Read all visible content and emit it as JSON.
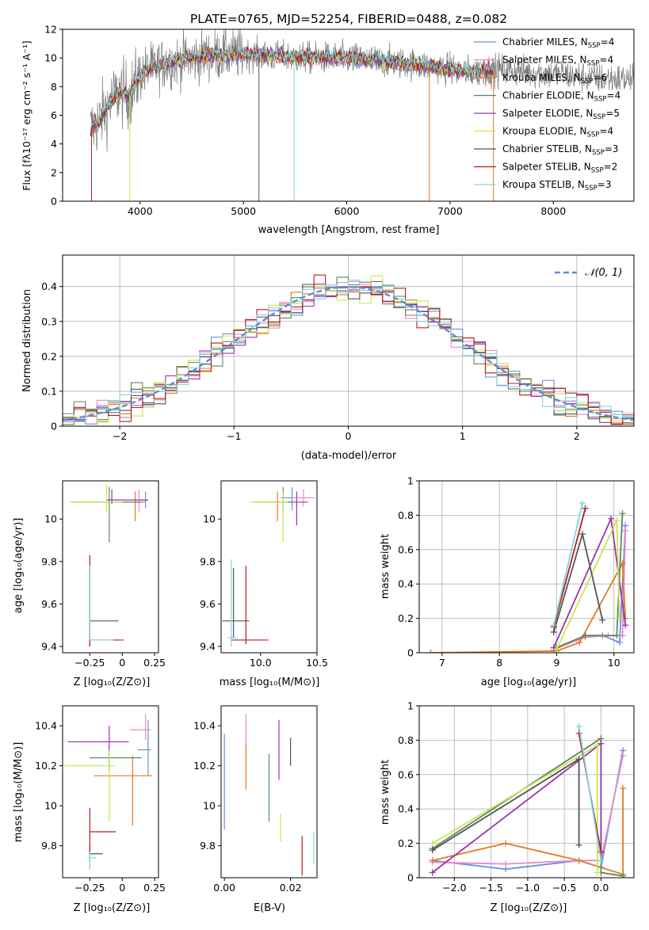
{
  "title": "PLATE=0765, MJD=52254, FIBERID=0488, z=0.082",
  "models": [
    {
      "name": "Chabrier MILES",
      "nssp": "4",
      "color": "#6f8fde"
    },
    {
      "name": "Salpeter MILES",
      "nssp": "4",
      "color": "#e88ac8"
    },
    {
      "name": "Kroupa MILES",
      "nssp": "6",
      "color": "#e07b24"
    },
    {
      "name": "Chabrier ELODIE",
      "nssp": "4",
      "color": "#5a8a5a"
    },
    {
      "name": "Salpeter ELODIE",
      "nssp": "5",
      "color": "#9a32b0"
    },
    {
      "name": "Kroupa ELODIE",
      "nssp": "4",
      "color": "#c8e650"
    },
    {
      "name": "Chabrier STELIB",
      "nssp": "3",
      "color": "#555555"
    },
    {
      "name": "Salpeter STELIB",
      "nssp": "2",
      "color": "#b81c1c"
    },
    {
      "name": "Kroupa STELIB",
      "nssp": "3",
      "color": "#7fd6e0"
    }
  ],
  "chart_data": [
    {
      "id": "spectrum",
      "type": "line",
      "xlabel": "wavelength [Angstrom, rest frame]",
      "ylabel": "Flux [fλ10⁻¹⁷ erg cm⁻² s⁻¹ A⁻¹]",
      "xlim": [
        3250,
        8780
      ],
      "ylim": [
        0,
        12
      ],
      "xticks": [
        4000,
        5000,
        6000,
        7000,
        8000
      ],
      "yticks": [
        0,
        2,
        4,
        6,
        8,
        10,
        12
      ],
      "x": [
        3520,
        3600,
        3700,
        3800,
        3900,
        4000,
        4100,
        4300,
        4500,
        4700,
        5000,
        5300,
        5600,
        6000,
        6300,
        6600,
        6900,
        7200,
        7500,
        7800,
        8100,
        8400,
        8780
      ],
      "y": [
        5.0,
        5.6,
        6.8,
        7.6,
        7.4,
        8.8,
        9.3,
        9.7,
        10.0,
        10.2,
        10.3,
        10.1,
        10.0,
        10.0,
        9.8,
        9.6,
        9.3,
        9.0,
        9.2,
        9.0,
        8.8,
        8.6,
        8.5
      ]
    },
    {
      "id": "residuals",
      "type": "line",
      "xlabel": "(data-model)/error",
      "ylabel": "Normed distribution",
      "legend": "𝒩(0, 1)",
      "xlim": [
        -2.5,
        2.5
      ],
      "ylim": [
        0,
        0.49
      ],
      "xticks": [
        -2,
        -1,
        0,
        1,
        2
      ],
      "yticks": [
        0.0,
        0.1,
        0.2,
        0.3,
        0.4
      ],
      "bin_width": 0.1,
      "bin_start": -2.5,
      "grid": true
    },
    {
      "id": "age_vs_z",
      "type": "scatter",
      "xlabel": "Z [log₁₀(Z/Z⊙)]",
      "ylabel": "age  [log₁₀(age/yr)]",
      "xlim": [
        -0.46,
        0.28
      ],
      "ylim": [
        9.37,
        10.18
      ],
      "xticks": [
        -0.25,
        0.0,
        0.25
      ],
      "yticks": [
        9.4,
        9.6,
        9.8,
        10.0
      ],
      "points": [
        {
          "x": 0.18,
          "y": 10.09,
          "xerr": [
            0.08,
            0.02
          ],
          "yerr": [
            0.04,
            0.04
          ]
        },
        {
          "x": 0.13,
          "y": 10.09,
          "xerr": [
            0.05,
            0.07
          ],
          "yerr": [
            0.06,
            0.05
          ]
        },
        {
          "x": 0.1,
          "y": 10.08,
          "xerr": [
            0.36,
            0.08
          ],
          "yerr": [
            0.09,
            0.05
          ]
        },
        {
          "x": -0.1,
          "y": 10.08,
          "xerr": [
            0.3,
            0.25
          ],
          "yerr": [
            0.19,
            0.07
          ]
        },
        {
          "x": -0.08,
          "y": 10.09,
          "xerr": [
            0.04,
            0.28
          ],
          "yerr": [
            0.02,
            0.05
          ]
        },
        {
          "x": -0.12,
          "y": 10.08,
          "xerr": [
            0.28,
            0.12
          ],
          "yerr": [
            0.05,
            0.08
          ]
        },
        {
          "x": -0.25,
          "y": 9.52,
          "xerr": [
            0.0,
            0.22
          ],
          "yerr": [
            0.12,
            0.25
          ]
        },
        {
          "x": -0.25,
          "y": 9.43,
          "xerr": [
            0.0,
            0.26
          ],
          "yerr": [
            0.03,
            0.4
          ]
        },
        {
          "x": -0.25,
          "y": 9.43,
          "xerr": [
            0.0,
            0.18
          ],
          "yerr": [
            0.0,
            0.35
          ]
        }
      ]
    },
    {
      "id": "age_vs_mass",
      "type": "scatter",
      "xlabel": "mass [log₁₀(M/M⊙)]",
      "ylabel": "",
      "xlim": [
        9.65,
        10.5
      ],
      "ylim": [
        9.37,
        10.18
      ],
      "xticks": [
        10.0,
        10.5
      ],
      "xtick_labels": [
        "10.0",
        "10.5"
      ],
      "xticks_minor": [
        9.65
      ],
      "yticks": [
        9.4,
        9.6,
        9.8,
        10.0
      ],
      "points": [
        {
          "x": 10.28,
          "y": 10.1,
          "xerr": [
            0.1,
            0.17
          ],
          "yerr": [
            0.06,
            0.05
          ]
        },
        {
          "x": 10.38,
          "y": 10.1,
          "xerr": [
            0.1,
            0.1
          ],
          "yerr": [
            0.04,
            0.04
          ]
        },
        {
          "x": 10.15,
          "y": 10.08,
          "xerr": [
            0.15,
            0.1
          ],
          "yerr": [
            0.09,
            0.05
          ]
        },
        {
          "x": 10.2,
          "y": 10.08,
          "xerr": [
            0.25,
            0.08
          ],
          "yerr": [
            0.05,
            0.07
          ]
        },
        {
          "x": 10.32,
          "y": 10.08,
          "xerr": [
            0.06,
            0.1
          ],
          "yerr": [
            0.11,
            0.05
          ]
        },
        {
          "x": 10.2,
          "y": 10.08,
          "xerr": [
            0.3,
            0.04
          ],
          "yerr": [
            0.19,
            0.05
          ]
        },
        {
          "x": 9.76,
          "y": 9.52,
          "xerr": [
            0.1,
            0.14
          ],
          "yerr": [
            0.08,
            0.25
          ]
        },
        {
          "x": 9.87,
          "y": 9.43,
          "xerr": [
            0.13,
            0.2
          ],
          "yerr": [
            0.02,
            0.35
          ]
        },
        {
          "x": 9.74,
          "y": 9.44,
          "xerr": [
            0.03,
            0.06
          ],
          "yerr": [
            0.04,
            0.37
          ]
        }
      ]
    },
    {
      "id": "weight_vs_age",
      "type": "line",
      "xlabel": "age  [log₁₀(age/yr)]",
      "ylabel": "mass weight",
      "xlim": [
        6.6,
        10.35
      ],
      "ylim": [
        0,
        1
      ],
      "xticks": [
        7,
        8,
        9,
        10
      ],
      "yticks": [
        0.0,
        0.2,
        0.4,
        0.6,
        0.8,
        1.0
      ],
      "grid": true,
      "series": [
        {
          "x": [
            8.95,
            9.5,
            9.8,
            10.1,
            10.2
          ],
          "y": [
            0.02,
            0.1,
            0.1,
            0.06,
            0.74
          ]
        },
        {
          "x": [
            8.95,
            9.5,
            9.9,
            10.15,
            10.2
          ],
          "y": [
            0.02,
            0.09,
            0.1,
            0.1,
            0.71
          ]
        },
        {
          "x": [
            6.8,
            9.0,
            9.4,
            10.15,
            10.2
          ],
          "y": [
            0.0,
            0.01,
            0.06,
            0.52,
            0.2
          ]
        },
        {
          "x": [
            9.0,
            9.5,
            10.05,
            10.15
          ],
          "y": [
            0.03,
            0.1,
            0.1,
            0.81
          ]
        },
        {
          "x": [
            8.95,
            9.95,
            10.2
          ],
          "y": [
            0.03,
            0.78,
            0.16
          ]
        },
        {
          "x": [
            9.0,
            10.05,
            10.1
          ],
          "y": [
            0.02,
            0.77,
            0.2
          ]
        },
        {
          "x": [
            8.95,
            9.45,
            9.8
          ],
          "y": [
            0.12,
            0.69,
            0.19
          ]
        },
        {
          "x": [
            8.95,
            9.5
          ],
          "y": [
            0.15,
            0.84
          ]
        },
        {
          "x": [
            8.95,
            9.45
          ],
          "y": [
            0.16,
            0.87
          ]
        }
      ]
    },
    {
      "id": "mass_vs_z",
      "type": "scatter",
      "xlabel": "Z [log₁₀(Z/Z⊙)]",
      "ylabel": "mass [log₁₀(M/M⊙)]",
      "xlim": [
        -0.46,
        0.28
      ],
      "ylim": [
        9.64,
        10.5
      ],
      "xticks": [
        -0.25,
        0.0,
        0.25
      ],
      "yticks": [
        9.8,
        10.0,
        10.2,
        10.4
      ],
      "points": [
        {
          "x": 0.2,
          "y": 10.28,
          "xerr": [
            0.08,
            0.02
          ],
          "yerr": [
            0.13,
            0.15
          ]
        },
        {
          "x": 0.18,
          "y": 10.38,
          "xerr": [
            0.12,
            0.04
          ],
          "yerr": [
            0.05,
            0.08
          ]
        },
        {
          "x": 0.08,
          "y": 10.15,
          "xerr": [
            0.3,
            0.15
          ],
          "yerr": [
            0.25,
            0.1
          ]
        },
        {
          "x": -0.1,
          "y": 10.24,
          "xerr": [
            0.15,
            0.25
          ],
          "yerr": [
            0.07,
            0.06
          ]
        },
        {
          "x": -0.1,
          "y": 10.32,
          "xerr": [
            0.32,
            0.15
          ],
          "yerr": [
            0.1,
            0.08
          ]
        },
        {
          "x": -0.1,
          "y": 10.2,
          "xerr": [
            0.35,
            0.05
          ],
          "yerr": [
            0.28,
            0.08
          ]
        },
        {
          "x": -0.25,
          "y": 9.76,
          "xerr": [
            0.0,
            0.1
          ],
          "yerr": [
            0.04,
            0.04
          ]
        },
        {
          "x": -0.25,
          "y": 9.87,
          "xerr": [
            0.0,
            0.2
          ],
          "yerr": [
            0.13,
            0.12
          ]
        },
        {
          "x": -0.25,
          "y": 9.74,
          "xerr": [
            0.0,
            0.05
          ],
          "yerr": [
            0.06,
            0.03
          ]
        }
      ]
    },
    {
      "id": "mass_vs_ebv",
      "type": "scatter",
      "xlabel": "E(B-V)",
      "ylabel": "",
      "xlim": [
        -0.001,
        0.028
      ],
      "ylim": [
        9.64,
        10.5
      ],
      "xticks": [
        0.0,
        0.02
      ],
      "xtick_labels": [
        "0.00",
        "0.02"
      ],
      "yticks": [
        9.8,
        10.0,
        10.2,
        10.4
      ],
      "points": [
        {
          "x": 0.0,
          "y": 10.12,
          "yerr": [
            0.24,
            0.24
          ]
        },
        {
          "x": 0.0065,
          "y": 10.38,
          "yerr": [
            0.08,
            0.08
          ]
        },
        {
          "x": 0.0065,
          "y": 10.2,
          "yerr": [
            0.12,
            0.11
          ]
        },
        {
          "x": 0.0135,
          "y": 10.09,
          "yerr": [
            0.17,
            0.17
          ]
        },
        {
          "x": 0.0165,
          "y": 10.28,
          "yerr": [
            0.15,
            0.15
          ]
        },
        {
          "x": 0.017,
          "y": 9.89,
          "yerr": [
            0.07,
            0.07
          ]
        },
        {
          "x": 0.02,
          "y": 10.27,
          "yerr": [
            0.07,
            0.07
          ]
        },
        {
          "x": 0.0235,
          "y": 9.75,
          "yerr": [
            0.1,
            0.1
          ]
        },
        {
          "x": 0.027,
          "y": 9.79,
          "yerr": [
            0.08,
            0.08
          ]
        }
      ]
    },
    {
      "id": "weight_vs_z",
      "type": "line",
      "xlabel": "Z [log₁₀(Z/Z⊙)]",
      "ylabel": "mass weight",
      "xlim": [
        -2.48,
        0.45
      ],
      "ylim": [
        0,
        1
      ],
      "xticks": [
        -2.0,
        -1.5,
        -1.0,
        -0.5,
        0.0
      ],
      "xtick_labels": [
        "−2.0",
        "−1.5",
        "−1.0",
        "−0.5",
        "0.0"
      ],
      "yticks": [
        0.0,
        0.2,
        0.4,
        0.6,
        0.8,
        1.0
      ],
      "grid": true,
      "series": [
        {
          "x": [
            -2.3,
            -1.3,
            -0.3,
            0.0,
            0.3
          ],
          "y": [
            0.1,
            0.05,
            0.1,
            0.06,
            0.74
          ]
        },
        {
          "x": [
            -2.3,
            -1.3,
            -0.3,
            0.0,
            0.3
          ],
          "y": [
            0.09,
            0.08,
            0.1,
            0.1,
            0.71
          ]
        },
        {
          "x": [
            -2.3,
            -1.3,
            -0.3,
            0.3,
            0.3
          ],
          "y": [
            0.1,
            0.2,
            0.1,
            0.02,
            0.52
          ]
        },
        {
          "x": [
            -2.3,
            0.0,
            0.0,
            0.3
          ],
          "y": [
            0.17,
            0.81,
            0.03,
            0.01
          ]
        },
        {
          "x": [
            -2.3,
            0.0,
            0.0
          ],
          "y": [
            0.03,
            0.78,
            0.15
          ]
        },
        {
          "x": [
            -2.3,
            -0.05,
            -0.05
          ],
          "y": [
            0.2,
            0.77,
            0.03
          ]
        },
        {
          "x": [
            -2.3,
            -0.3,
            -0.3
          ],
          "y": [
            0.16,
            0.69,
            0.19
          ]
        },
        {
          "x": [
            -0.3,
            0.0
          ],
          "y": [
            0.84,
            0.15
          ]
        },
        {
          "x": [
            -0.3,
            0.0
          ],
          "y": [
            0.88,
            0.1
          ]
        }
      ]
    }
  ]
}
